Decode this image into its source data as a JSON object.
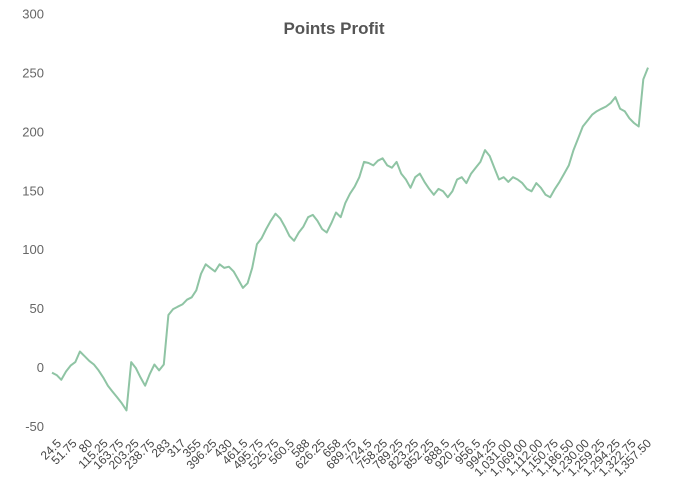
{
  "chart_data": {
    "type": "line",
    "title": "Points Profit",
    "xlabel": "",
    "ylabel": "",
    "ylim": [
      -50,
      300
    ],
    "y_ticks": [
      -50,
      0,
      50,
      100,
      150,
      200,
      250,
      300
    ],
    "x_tick_labels": [
      "24.5",
      "51.75",
      "80",
      "115.25",
      "163.75",
      "203.25",
      "238.75",
      "283",
      "317",
      "355",
      "396.25",
      "430",
      "461.5",
      "495.75",
      "525.75",
      "560.5",
      "588",
      "626.25",
      "658",
      "689.75",
      "724.5",
      "758.25",
      "789.25",
      "823.25",
      "852.25",
      "888.5",
      "920.75",
      "956.5",
      "994.25",
      "1,031.00",
      "1,069.00",
      "1,112.00",
      "1,150.75",
      "1,186.50",
      "1,230.00",
      "1,259.25",
      "1,294.25",
      "1,322.75",
      "1,357.50"
    ],
    "grid": false,
    "legend": "none",
    "line_color": "#8fc4a4",
    "series": [
      {
        "values": [
          -4,
          -6,
          -10,
          -3,
          2,
          5,
          14,
          10,
          6,
          3,
          -2,
          -8,
          -15,
          -20,
          -25,
          -30,
          -36,
          5,
          0,
          -8,
          -15,
          -5,
          3,
          -2,
          3,
          45,
          50,
          52,
          54,
          58,
          60,
          66,
          80,
          88,
          85,
          82,
          88,
          85,
          86,
          82,
          75,
          68,
          72,
          85,
          105,
          110,
          118,
          125,
          131,
          127,
          120,
          112,
          108,
          115,
          120,
          128,
          130,
          125,
          118,
          115,
          123,
          132,
          128,
          140,
          148,
          154,
          162,
          175,
          174,
          172,
          176,
          178,
          172,
          170,
          175,
          165,
          160,
          153,
          162,
          165,
          158,
          152,
          147,
          152,
          150,
          145,
          150,
          160,
          162,
          157,
          165,
          170,
          175,
          185,
          180,
          170,
          160,
          162,
          158,
          162,
          160,
          157,
          152,
          150,
          157,
          153,
          147,
          145,
          152,
          158,
          165,
          172,
          185,
          195,
          205,
          210,
          215,
          218,
          220,
          222,
          225,
          230,
          220,
          218,
          212,
          208,
          205,
          245,
          255
        ]
      }
    ]
  }
}
